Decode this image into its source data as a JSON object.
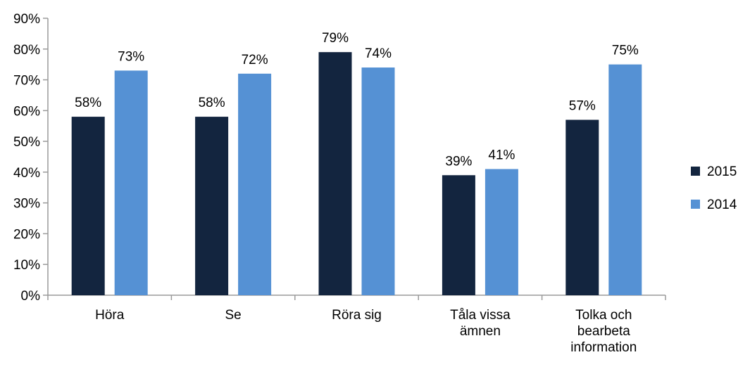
{
  "chart_data": {
    "type": "bar",
    "title": "",
    "xlabel": "",
    "ylabel": "",
    "ylim": [
      0,
      90
    ],
    "yticks": [
      0,
      10,
      20,
      30,
      40,
      50,
      60,
      70,
      80,
      90
    ],
    "ytick_labels": [
      "0%",
      "10%",
      "20%",
      "30%",
      "40%",
      "50%",
      "60%",
      "70%",
      "80%",
      "90%"
    ],
    "categories": [
      [
        "Höra"
      ],
      [
        "Se"
      ],
      [
        "Röra sig"
      ],
      [
        "Tåla vissa",
        "ämnen"
      ],
      [
        "Tolka och",
        "bearbeta",
        "information"
      ]
    ],
    "series": [
      {
        "name": "2015",
        "color": "#13253f",
        "values": [
          58,
          58,
          79,
          39,
          57
        ],
        "labels": [
          "58%",
          "58%",
          "79%",
          "39%",
          "57%"
        ]
      },
      {
        "name": "2014",
        "color": "#5591d4",
        "values": [
          73,
          72,
          74,
          41,
          75
        ],
        "labels": [
          "73%",
          "72%",
          "74%",
          "41%",
          "75%"
        ]
      }
    ],
    "legend_position": "right",
    "grid": false
  }
}
